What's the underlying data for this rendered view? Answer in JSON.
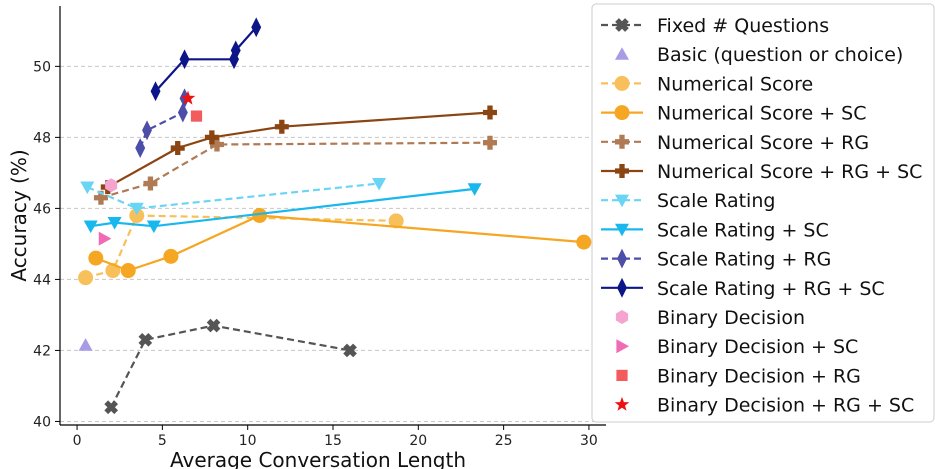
{
  "chart_data": {
    "type": "line",
    "title": "",
    "xlabel": "Average Conversation Length",
    "ylabel": "Accuracy (%)",
    "xlim": [
      -1,
      31
    ],
    "ylim": [
      39.9,
      51.7
    ],
    "xticks": [
      0,
      5,
      10,
      15,
      20,
      25,
      30
    ],
    "yticks": [
      40,
      42,
      44,
      46,
      48,
      50
    ],
    "grid": "horizontal dashed",
    "legend_position": "right (outside)",
    "series": [
      {
        "name": "Fixed # Questions",
        "color": "#555555",
        "line": "dashed",
        "marker": "x-filled",
        "x": [
          2.0,
          4.0,
          8.0,
          16.0
        ],
        "y": [
          40.4,
          42.3,
          42.7,
          42.0
        ]
      },
      {
        "name": "Basic (question or choice)",
        "color": "#a79ce6",
        "line": "none",
        "marker": "triangle-up",
        "x": [
          0.5
        ],
        "y": [
          42.15
        ]
      },
      {
        "name": "Numerical Score",
        "color": "#f8c05a",
        "line": "dashed",
        "marker": "circle",
        "x": [
          0.5,
          2.1,
          3.5,
          18.7
        ],
        "y": [
          44.05,
          44.25,
          45.8,
          45.65
        ]
      },
      {
        "name": "Numerical Score + SC",
        "color": "#f5a623",
        "line": "solid",
        "marker": "circle",
        "x": [
          1.1,
          3.0,
          5.5,
          10.7,
          29.7
        ],
        "y": [
          44.6,
          44.25,
          44.65,
          45.8,
          45.05
        ]
      },
      {
        "name": "Numerical Score + RG",
        "color": "#b07a55",
        "line": "dashed",
        "marker": "plus-filled",
        "x": [
          1.4,
          4.3,
          8.2,
          24.2
        ],
        "y": [
          46.3,
          46.7,
          47.8,
          47.85
        ]
      },
      {
        "name": "Numerical Score + RG + SC",
        "color": "#8b4513",
        "line": "solid",
        "marker": "plus-filled",
        "x": [
          1.8,
          5.9,
          7.9,
          12.0,
          24.2
        ],
        "y": [
          46.6,
          47.7,
          48.0,
          48.3,
          48.7
        ]
      },
      {
        "name": "Scale Rating",
        "color": "#6ad4f5",
        "line": "dashed",
        "marker": "triangle-down",
        "x": [
          0.6,
          3.5,
          17.7
        ],
        "y": [
          46.6,
          46.0,
          46.7
        ]
      },
      {
        "name": "Scale Rating + SC",
        "color": "#18b8ee",
        "line": "solid",
        "marker": "triangle-down",
        "x": [
          0.8,
          2.2,
          4.5,
          23.3
        ],
        "y": [
          45.5,
          45.6,
          45.5,
          46.55
        ]
      },
      {
        "name": "Scale Rating + RG",
        "color": "#4c4ea8",
        "line": "dashed",
        "marker": "thin-diamond",
        "x": [
          3.7,
          4.1,
          6.2,
          6.3
        ],
        "y": [
          47.7,
          48.2,
          48.7,
          49.1
        ]
      },
      {
        "name": "Scale Rating + RG + SC",
        "color": "#0d1689",
        "line": "solid",
        "marker": "thin-diamond",
        "x": [
          4.6,
          6.3,
          9.2,
          9.3,
          10.5
        ],
        "y": [
          49.3,
          50.2,
          50.2,
          50.45,
          51.1
        ]
      },
      {
        "name": "Binary Decision",
        "color": "#f7a3cf",
        "line": "none",
        "marker": "hexagon",
        "x": [
          2.0
        ],
        "y": [
          46.65
        ]
      },
      {
        "name": "Binary Decision + SC",
        "color": "#f06ab5",
        "line": "none",
        "marker": "triangle-right",
        "x": [
          1.6
        ],
        "y": [
          45.15
        ]
      },
      {
        "name": "Binary Decision + RG",
        "color": "#f25c5c",
        "line": "none",
        "marker": "square",
        "x": [
          7.0
        ],
        "y": [
          48.6
        ]
      },
      {
        "name": "Binary Decision + RG + SC",
        "color": "#ee1111",
        "line": "none",
        "marker": "star",
        "x": [
          6.5
        ],
        "y": [
          49.1
        ]
      }
    ]
  }
}
